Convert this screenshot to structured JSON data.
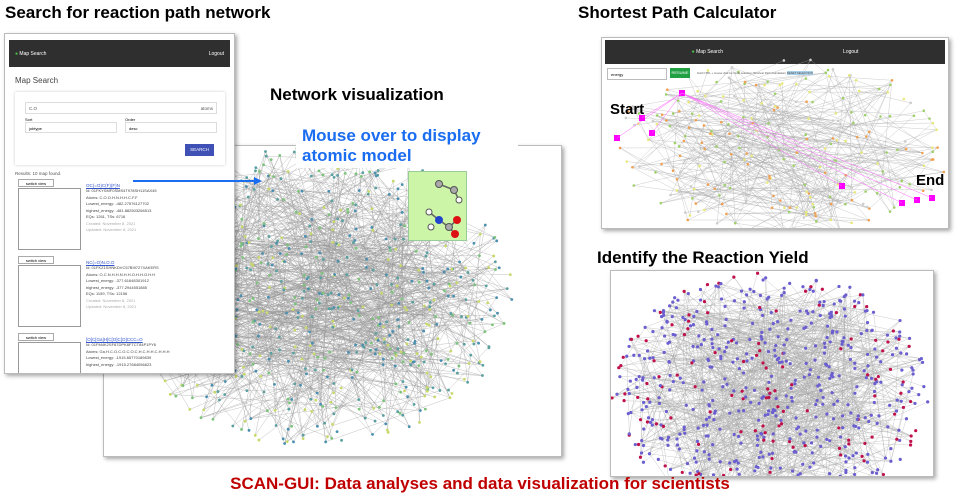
{
  "titles": {
    "search": "Search for reaction path network",
    "network": "Network visualization",
    "mouse_over": "Mouse over to display atomic model",
    "shortest": "Shortest Path Calculator",
    "yield": "Identify the Reaction Yield",
    "footer": "SCAN-GUI: Data analyses and data visualization for scientists"
  },
  "search_app": {
    "nav_title": "Map Search",
    "logout": "Logout",
    "page_title": "Map Search",
    "query": "C.O",
    "atoms_select": "atoms",
    "sort_label": "Sort",
    "sort_value": "jobtype",
    "order_label": "Order",
    "order_value": "desc",
    "search_button": "SEARCH",
    "results": "Results: 10 map found.",
    "switch_view": "switch view",
    "items": [
      {
        "name": "OC(=O)C(F)(F)N",
        "id": "Id: 01FKYSMF0SMS4T978SH11SAX45",
        "atoms": "Atoms: C.O.O.H.N.H.H.C.F.F",
        "lowest": "Lowest_energy: -482.27576127702",
        "highest": "highest_energy: -481.882503266513",
        "eqs": "EQs: 1261, TSs: 6716",
        "created": "Created: November 8, 2021",
        "updated": "Updated: November 8, 2021"
      },
      {
        "name": "NC(=O)N.O.O",
        "id": "Id: 01FKZ1SHNKDVC57BI9727XAKERS",
        "atoms": "Atoms: O.C.N.H.H.N.H.H.O.H.H.O.H.H",
        "lowest": "Lowest_energy: -377.61648301912",
        "highest": "highest_energy: -377.2944551885",
        "eqs": "EQs: 1159, TSs: 12156",
        "created": "Created: November 8, 2021",
        "updated": "Updated: November 8, 2021"
      },
      {
        "name": "[O]C[Ga]H]C[O]C[O]CCC=O",
        "id": "Id: 01FM4K2SF87DPK8FTCT84P1PY6",
        "atoms": "Atoms: Ga.H.C.O.C.O.C.O.C.H.C.H.H.C.H.H.H",
        "lowest": "Lowest_energy: -1915.65770189839",
        "highest": "highest_energy: -1915.27684056623",
        "eqs": "",
        "created": "",
        "updated": ""
      }
    ]
  },
  "path_app": {
    "nav_title": "Map Search",
    "logout": "Logout",
    "select_value": "energy",
    "resume_button": "RESUME",
    "hint": "Hold CTRL + mouse click for Node selection (Shortest Path Calculation)",
    "reset": "RESET SELECTION",
    "start_label": "Start",
    "end_label": "End"
  },
  "colors": {
    "footer": "#c00000",
    "mouse_over": "#1a6cf0",
    "nav": "#2f2f2f",
    "search_btn": "#3f51b5",
    "resume": "#21a044",
    "path": "#ff00ff",
    "yield_node": "#6b5fd0",
    "yield_hot": "#c0104a"
  }
}
